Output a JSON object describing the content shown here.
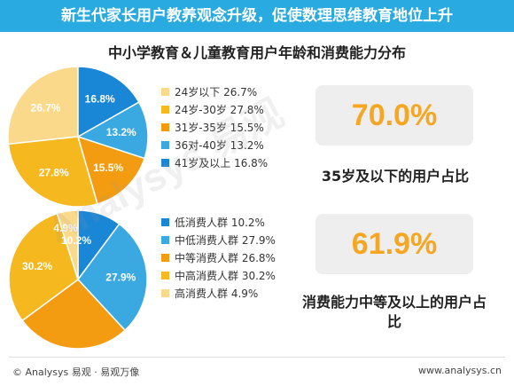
{
  "banner": {
    "title": "新生代家长用户教养观念升级，促使数理思维教育地位上升"
  },
  "chart_title": "中小学教育＆儿童教育用户年龄和消费能力分布",
  "chart_data": [
    {
      "type": "pie",
      "categories": [
        "24岁以下",
        "24岁-30岁",
        "31岁-35岁",
        "36对-40岁",
        "41岁及以上"
      ],
      "values": [
        26.7,
        27.8,
        15.5,
        13.2,
        16.8
      ],
      "value_labels": [
        "26.7%",
        "27.8%",
        "15.5%",
        "13.2%",
        "16.8%"
      ],
      "legend": [
        "24岁以下 26.7%",
        "24岁-30岁 27.8%",
        "31岁-35岁 15.5%",
        "36对-40岁 13.2%",
        "41岁及以上 16.8%"
      ],
      "colors": [
        "#fbd98a",
        "#f5b81e",
        "#f39c12",
        "#3aa9e2",
        "#1a86d6"
      ],
      "legend_position": "right"
    },
    {
      "type": "pie",
      "categories": [
        "低消费人群",
        "中低消费人群",
        "中等消费人群",
        "中高消费人群",
        "高消费人群"
      ],
      "values": [
        10.2,
        27.9,
        26.8,
        30.2,
        4.9
      ],
      "value_labels": [
        "10.2%",
        "27.9%",
        "",
        "30.2%",
        "4.9%"
      ],
      "legend": [
        "低消费人群 10.2%",
        "中低消费人群 27.9%",
        "中等消费人群 26.8%",
        "中高消费人群 30.2%",
        "高消费人群 4.9%"
      ],
      "colors": [
        "#1a86d6",
        "#3aa9e2",
        "#f39c12",
        "#f5b81e",
        "#fbd98a"
      ],
      "legend_position": "right"
    }
  ],
  "stats": [
    {
      "value": "70.0%",
      "label": "35岁及以下的用户占比"
    },
    {
      "value": "61.9%",
      "label": "消费能力中等及以上的用户占比"
    }
  ],
  "watermark": "Analysys 易观",
  "footer": {
    "left": "© Analysys 易观 · 易观万像",
    "right": "www.analysys.cn"
  }
}
